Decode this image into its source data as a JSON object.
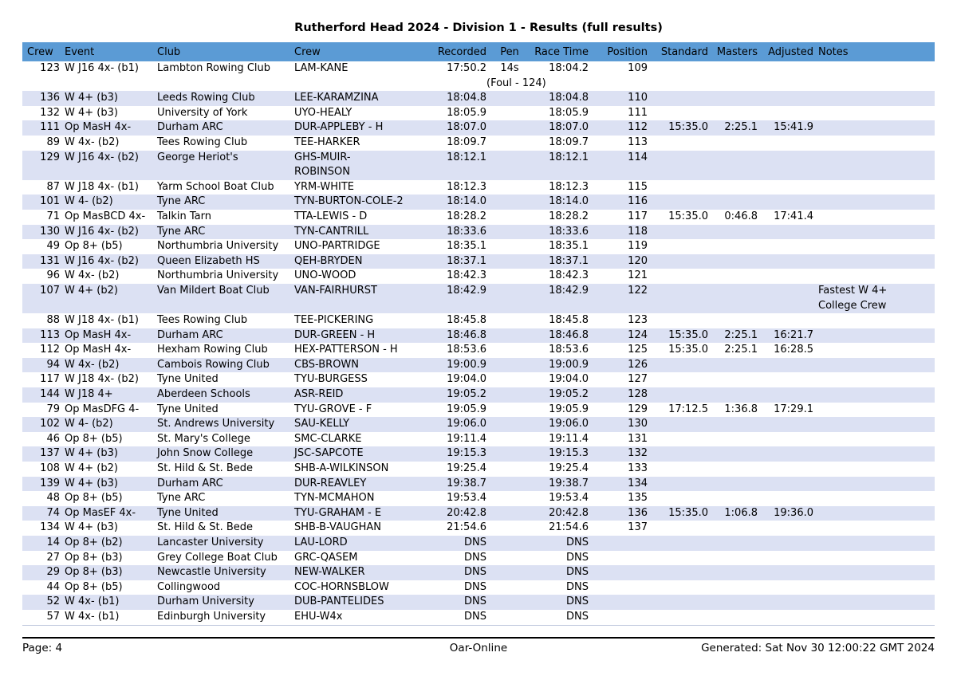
{
  "title": "Rutherford Head 2024 - Division 1 - Results (full results)",
  "colors": {
    "header_bg": "#5b9bd5",
    "stripe_bg": "#dce1f3"
  },
  "table": {
    "columns": [
      "Crew",
      "Event",
      "Club",
      "Crew",
      "Recorded",
      "Pen",
      "Race Time",
      "Position",
      "Standard",
      "Masters",
      "Adjusted",
      "Notes"
    ],
    "rows": [
      {
        "crew_no": "123",
        "event": "W J16 4x- (b1)",
        "club": "Lambton Rowing Club",
        "crew": "LAM-KANE",
        "recorded": "17:50.2",
        "pen": "14s",
        "pen_note": "(Foul - 124)",
        "race_time": "18:04.2",
        "position": "109",
        "standard": "",
        "masters": "",
        "adjusted": "",
        "notes": ""
      },
      {
        "crew_no": "136",
        "event": "W 4+ (b3)",
        "club": "Leeds Rowing Club",
        "crew": "LEE-KARAMZINA",
        "recorded": "18:04.8",
        "pen": "",
        "race_time": "18:04.8",
        "position": "110",
        "standard": "",
        "masters": "",
        "adjusted": "",
        "notes": ""
      },
      {
        "crew_no": "132",
        "event": "W 4+ (b3)",
        "club": "University of York",
        "crew": "UYO-HEALY",
        "recorded": "18:05.9",
        "pen": "",
        "race_time": "18:05.9",
        "position": "111",
        "standard": "",
        "masters": "",
        "adjusted": "",
        "notes": ""
      },
      {
        "crew_no": "111",
        "event": "Op MasH 4x-",
        "club": "Durham ARC",
        "crew": "DUR-APPLEBY - H",
        "recorded": "18:07.0",
        "pen": "",
        "race_time": "18:07.0",
        "position": "112",
        "standard": "15:35.0",
        "masters": "2:25.1",
        "adjusted": "15:41.9",
        "notes": ""
      },
      {
        "crew_no": "89",
        "event": "W 4x- (b2)",
        "club": "Tees Rowing Club",
        "crew": "TEE-HARKER",
        "recorded": "18:09.7",
        "pen": "",
        "race_time": "18:09.7",
        "position": "113",
        "standard": "",
        "masters": "",
        "adjusted": "",
        "notes": ""
      },
      {
        "crew_no": "129",
        "event": "W J16 4x- (b2)",
        "club": "George Heriot's",
        "crew": "GHS-MUIR-\nROBINSON",
        "recorded": "18:12.1",
        "pen": "",
        "race_time": "18:12.1",
        "position": "114",
        "standard": "",
        "masters": "",
        "adjusted": "",
        "notes": ""
      },
      {
        "crew_no": "87",
        "event": "W J18 4x- (b1)",
        "club": "Yarm School Boat Club",
        "crew": "YRM-WHITE",
        "recorded": "18:12.3",
        "pen": "",
        "race_time": "18:12.3",
        "position": "115",
        "standard": "",
        "masters": "",
        "adjusted": "",
        "notes": ""
      },
      {
        "crew_no": "101",
        "event": "W 4- (b2)",
        "club": "Tyne ARC",
        "crew": "TYN-BURTON-COLE-2",
        "recorded": "18:14.0",
        "pen": "",
        "race_time": "18:14.0",
        "position": "116",
        "standard": "",
        "masters": "",
        "adjusted": "",
        "notes": ""
      },
      {
        "crew_no": "71",
        "event": "Op MasBCD 4x-",
        "club": "Talkin Tarn",
        "crew": "TTA-LEWIS - D",
        "recorded": "18:28.2",
        "pen": "",
        "race_time": "18:28.2",
        "position": "117",
        "standard": "15:35.0",
        "masters": "0:46.8",
        "adjusted": "17:41.4",
        "notes": ""
      },
      {
        "crew_no": "130",
        "event": "W J16 4x- (b2)",
        "club": "Tyne ARC",
        "crew": "TYN-CANTRILL",
        "recorded": "18:33.6",
        "pen": "",
        "race_time": "18:33.6",
        "position": "118",
        "standard": "",
        "masters": "",
        "adjusted": "",
        "notes": ""
      },
      {
        "crew_no": "49",
        "event": "Op 8+ (b5)",
        "club": "Northumbria University",
        "crew": "UNO-PARTRIDGE",
        "recorded": "18:35.1",
        "pen": "",
        "race_time": "18:35.1",
        "position": "119",
        "standard": "",
        "masters": "",
        "adjusted": "",
        "notes": ""
      },
      {
        "crew_no": "131",
        "event": "W J16 4x- (b2)",
        "club": "Queen Elizabeth HS",
        "crew": "QEH-BRYDEN",
        "recorded": "18:37.1",
        "pen": "",
        "race_time": "18:37.1",
        "position": "120",
        "standard": "",
        "masters": "",
        "adjusted": "",
        "notes": ""
      },
      {
        "crew_no": "96",
        "event": "W 4x- (b2)",
        "club": "Northumbria University",
        "crew": "UNO-WOOD",
        "recorded": "18:42.3",
        "pen": "",
        "race_time": "18:42.3",
        "position": "121",
        "standard": "",
        "masters": "",
        "adjusted": "",
        "notes": ""
      },
      {
        "crew_no": "107",
        "event": "W 4+ (b2)",
        "club": "Van Mildert Boat Club",
        "crew": "VAN-FAIRHURST",
        "recorded": "18:42.9",
        "pen": "",
        "race_time": "18:42.9",
        "position": "122",
        "standard": "",
        "masters": "",
        "adjusted": "",
        "notes": "Fastest W 4+\nCollege Crew"
      },
      {
        "crew_no": "88",
        "event": "W J18 4x- (b1)",
        "club": "Tees Rowing Club",
        "crew": "TEE-PICKERING",
        "recorded": "18:45.8",
        "pen": "",
        "race_time": "18:45.8",
        "position": "123",
        "standard": "",
        "masters": "",
        "adjusted": "",
        "notes": ""
      },
      {
        "crew_no": "113",
        "event": "Op MasH 4x-",
        "club": "Durham ARC",
        "crew": "DUR-GREEN - H",
        "recorded": "18:46.8",
        "pen": "",
        "race_time": "18:46.8",
        "position": "124",
        "standard": "15:35.0",
        "masters": "2:25.1",
        "adjusted": "16:21.7",
        "notes": ""
      },
      {
        "crew_no": "112",
        "event": "Op MasH 4x-",
        "club": "Hexham Rowing Club",
        "crew": "HEX-PATTERSON - H",
        "recorded": "18:53.6",
        "pen": "",
        "race_time": "18:53.6",
        "position": "125",
        "standard": "15:35.0",
        "masters": "2:25.1",
        "adjusted": "16:28.5",
        "notes": ""
      },
      {
        "crew_no": "94",
        "event": "W 4x- (b2)",
        "club": "Cambois Rowing Club",
        "crew": "CBS-BROWN",
        "recorded": "19:00.9",
        "pen": "",
        "race_time": "19:00.9",
        "position": "126",
        "standard": "",
        "masters": "",
        "adjusted": "",
        "notes": ""
      },
      {
        "crew_no": "117",
        "event": "W J18 4x- (b2)",
        "club": "Tyne United",
        "crew": "TYU-BURGESS",
        "recorded": "19:04.0",
        "pen": "",
        "race_time": "19:04.0",
        "position": "127",
        "standard": "",
        "masters": "",
        "adjusted": "",
        "notes": ""
      },
      {
        "crew_no": "144",
        "event": "W J18 4+",
        "club": "Aberdeen Schools",
        "crew": "ASR-REID",
        "recorded": "19:05.2",
        "pen": "",
        "race_time": "19:05.2",
        "position": "128",
        "standard": "",
        "masters": "",
        "adjusted": "",
        "notes": ""
      },
      {
        "crew_no": "79",
        "event": "Op MasDFG 4-",
        "club": "Tyne United",
        "crew": "TYU-GROVE - F",
        "recorded": "19:05.9",
        "pen": "",
        "race_time": "19:05.9",
        "position": "129",
        "standard": "17:12.5",
        "masters": "1:36.8",
        "adjusted": "17:29.1",
        "notes": ""
      },
      {
        "crew_no": "102",
        "event": "W 4- (b2)",
        "club": "St. Andrews University",
        "crew": "SAU-KELLY",
        "recorded": "19:06.0",
        "pen": "",
        "race_time": "19:06.0",
        "position": "130",
        "standard": "",
        "masters": "",
        "adjusted": "",
        "notes": ""
      },
      {
        "crew_no": "46",
        "event": "Op 8+ (b5)",
        "club": "St. Mary's College",
        "crew": "SMC-CLARKE",
        "recorded": "19:11.4",
        "pen": "",
        "race_time": "19:11.4",
        "position": "131",
        "standard": "",
        "masters": "",
        "adjusted": "",
        "notes": ""
      },
      {
        "crew_no": "137",
        "event": "W 4+ (b3)",
        "club": "John Snow College",
        "crew": "JSC-SAPCOTE",
        "recorded": "19:15.3",
        "pen": "",
        "race_time": "19:15.3",
        "position": "132",
        "standard": "",
        "masters": "",
        "adjusted": "",
        "notes": ""
      },
      {
        "crew_no": "108",
        "event": "W 4+ (b2)",
        "club": "St. Hild & St. Bede",
        "crew": "SHB-A-WILKINSON",
        "recorded": "19:25.4",
        "pen": "",
        "race_time": "19:25.4",
        "position": "133",
        "standard": "",
        "masters": "",
        "adjusted": "",
        "notes": ""
      },
      {
        "crew_no": "139",
        "event": "W 4+ (b3)",
        "club": "Durham ARC",
        "crew": "DUR-REAVLEY",
        "recorded": "19:38.7",
        "pen": "",
        "race_time": "19:38.7",
        "position": "134",
        "standard": "",
        "masters": "",
        "adjusted": "",
        "notes": ""
      },
      {
        "crew_no": "48",
        "event": "Op 8+ (b5)",
        "club": "Tyne ARC",
        "crew": "TYN-MCMAHON",
        "recorded": "19:53.4",
        "pen": "",
        "race_time": "19:53.4",
        "position": "135",
        "standard": "",
        "masters": "",
        "adjusted": "",
        "notes": ""
      },
      {
        "crew_no": "74",
        "event": "Op MasEF 4x-",
        "club": "Tyne United",
        "crew": "TYU-GRAHAM - E",
        "recorded": "20:42.8",
        "pen": "",
        "race_time": "20:42.8",
        "position": "136",
        "standard": "15:35.0",
        "masters": "1:06.8",
        "adjusted": "19:36.0",
        "notes": ""
      },
      {
        "crew_no": "134",
        "event": "W 4+ (b3)",
        "club": "St. Hild & St. Bede",
        "crew": "SHB-B-VAUGHAN",
        "recorded": "21:54.6",
        "pen": "",
        "race_time": "21:54.6",
        "position": "137",
        "standard": "",
        "masters": "",
        "adjusted": "",
        "notes": ""
      },
      {
        "crew_no": "14",
        "event": "Op 8+ (b2)",
        "club": "Lancaster University",
        "crew": "LAU-LORD",
        "recorded": "DNS",
        "pen": "",
        "race_time": "DNS",
        "position": "",
        "standard": "",
        "masters": "",
        "adjusted": "",
        "notes": ""
      },
      {
        "crew_no": "27",
        "event": "Op 8+ (b3)",
        "club": "Grey College Boat Club",
        "crew": "GRC-QASEM",
        "recorded": "DNS",
        "pen": "",
        "race_time": "DNS",
        "position": "",
        "standard": "",
        "masters": "",
        "adjusted": "",
        "notes": ""
      },
      {
        "crew_no": "29",
        "event": "Op 8+ (b3)",
        "club": "Newcastle University",
        "crew": "NEW-WALKER",
        "recorded": "DNS",
        "pen": "",
        "race_time": "DNS",
        "position": "",
        "standard": "",
        "masters": "",
        "adjusted": "",
        "notes": ""
      },
      {
        "crew_no": "44",
        "event": "Op 8+ (b5)",
        "club": "Collingwood",
        "crew": "COC-HORNSBLOW",
        "recorded": "DNS",
        "pen": "",
        "race_time": "DNS",
        "position": "",
        "standard": "",
        "masters": "",
        "adjusted": "",
        "notes": ""
      },
      {
        "crew_no": "52",
        "event": "W 4x- (b1)",
        "club": "Durham University",
        "crew": "DUB-PANTELIDES",
        "recorded": "DNS",
        "pen": "",
        "race_time": "DNS",
        "position": "",
        "standard": "",
        "masters": "",
        "adjusted": "",
        "notes": ""
      },
      {
        "crew_no": "57",
        "event": "W 4x- (b1)",
        "club": "Edinburgh University",
        "crew": "EHU-W4x",
        "recorded": "DNS",
        "pen": "",
        "race_time": "DNS",
        "position": "",
        "standard": "",
        "masters": "",
        "adjusted": "",
        "notes": ""
      }
    ]
  },
  "footer": {
    "page": "Page: 4",
    "center": "Oar-Online",
    "generated": "Generated: Sat Nov 30 12:00:22 GMT 2024"
  }
}
